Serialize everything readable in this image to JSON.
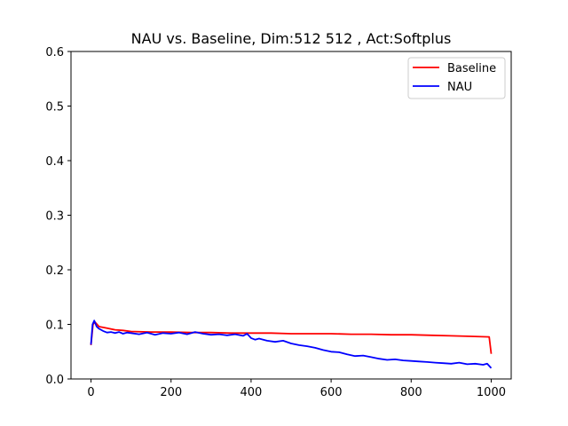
{
  "chart_data": {
    "type": "line",
    "title": "NAU vs. Baseline, Dim:512 512 , Act:Softplus",
    "xlabel": "",
    "ylabel": "",
    "xlim": [
      -50,
      1050
    ],
    "ylim": [
      0.0,
      0.6
    ],
    "xticks": [
      0,
      200,
      400,
      600,
      800,
      1000
    ],
    "xtick_labels": [
      "0",
      "200",
      "400",
      "600",
      "800",
      "1000"
    ],
    "yticks": [
      0.0,
      0.1,
      0.2,
      0.3,
      0.4,
      0.5,
      0.6
    ],
    "ytick_labels": [
      "0.0",
      "0.1",
      "0.2",
      "0.3",
      "0.4",
      "0.5",
      "0.6"
    ],
    "grid": false,
    "legend_position": "top-right",
    "series": [
      {
        "name": "Baseline",
        "color": "#ff0000",
        "x": [
          0,
          5,
          10,
          20,
          40,
          60,
          80,
          100,
          150,
          200,
          250,
          300,
          350,
          400,
          450,
          500,
          550,
          600,
          650,
          700,
          750,
          800,
          850,
          900,
          950,
          995,
          1000
        ],
        "y": [
          0.062,
          0.1,
          0.104,
          0.096,
          0.093,
          0.09,
          0.089,
          0.087,
          0.086,
          0.086,
          0.085,
          0.085,
          0.084,
          0.084,
          0.084,
          0.083,
          0.083,
          0.083,
          0.082,
          0.082,
          0.081,
          0.081,
          0.08,
          0.079,
          0.078,
          0.077,
          0.046
        ]
      },
      {
        "name": "NAU",
        "color": "#0000ff",
        "x": [
          0,
          4,
          8,
          14,
          20,
          30,
          40,
          50,
          60,
          70,
          80,
          90,
          100,
          120,
          140,
          160,
          180,
          200,
          220,
          240,
          260,
          280,
          300,
          320,
          340,
          360,
          380,
          390,
          400,
          410,
          420,
          440,
          460,
          480,
          500,
          520,
          540,
          560,
          580,
          600,
          620,
          640,
          660,
          680,
          700,
          720,
          740,
          760,
          780,
          800,
          820,
          840,
          860,
          880,
          900,
          920,
          940,
          960,
          980,
          990,
          1000
        ],
        "y": [
          0.063,
          0.1,
          0.107,
          0.096,
          0.092,
          0.088,
          0.085,
          0.086,
          0.084,
          0.086,
          0.083,
          0.085,
          0.084,
          0.082,
          0.085,
          0.081,
          0.084,
          0.083,
          0.085,
          0.082,
          0.086,
          0.083,
          0.081,
          0.082,
          0.08,
          0.082,
          0.079,
          0.083,
          0.075,
          0.072,
          0.074,
          0.07,
          0.068,
          0.07,
          0.065,
          0.062,
          0.06,
          0.057,
          0.053,
          0.05,
          0.049,
          0.045,
          0.042,
          0.043,
          0.04,
          0.037,
          0.035,
          0.036,
          0.034,
          0.033,
          0.032,
          0.031,
          0.03,
          0.029,
          0.028,
          0.03,
          0.027,
          0.028,
          0.026,
          0.028,
          0.02
        ]
      }
    ]
  }
}
